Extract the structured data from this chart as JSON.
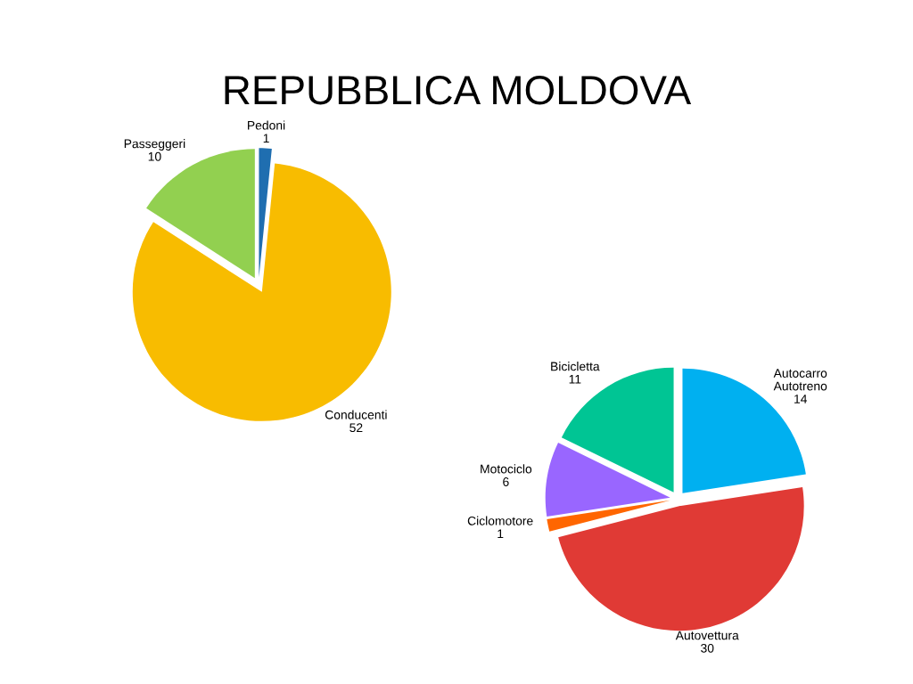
{
  "chart_data": [
    {
      "type": "pie",
      "title": "REPUBBLICA MOLDOVA",
      "categories": [
        "Pedoni",
        "Conducenti",
        "Passeggeri"
      ],
      "values": [
        1,
        52,
        10
      ],
      "colors": [
        "#1f6eb0",
        "#f8bc00",
        "#92d050"
      ],
      "data_labels": true,
      "legend": false
    },
    {
      "type": "pie",
      "categories": [
        "Autocarro\nAutotreno",
        "Autovettura",
        "Ciclomotore",
        "Motociclo",
        "Bicicletta"
      ],
      "values": [
        14,
        30,
        1,
        6,
        11
      ],
      "colors": [
        "#00b0f0",
        "#e03a35",
        "#ff6600",
        "#9966ff",
        "#00c594"
      ],
      "data_labels": true,
      "legend": false
    }
  ]
}
